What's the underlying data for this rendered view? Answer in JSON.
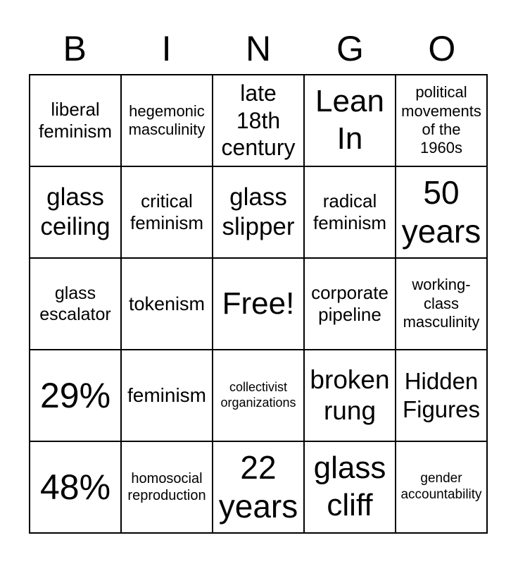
{
  "header": {
    "letters": [
      "B",
      "I",
      "N",
      "G",
      "O"
    ]
  },
  "card": {
    "rows": 5,
    "cols": 5,
    "free_space_text": "Free!",
    "cells": [
      {
        "text": "liberal feminism"
      },
      {
        "text": "hegemonic masculinity"
      },
      {
        "text": "late 18th century"
      },
      {
        "text": "Lean In"
      },
      {
        "text": "political movements of the 1960s"
      },
      {
        "text": "glass ceiling"
      },
      {
        "text": "critical feminism"
      },
      {
        "text": "glass slipper"
      },
      {
        "text": "radical feminism"
      },
      {
        "text": "50 years"
      },
      {
        "text": "glass escalator"
      },
      {
        "text": "tokenism"
      },
      {
        "text": "Free!"
      },
      {
        "text": "corporate pipeline"
      },
      {
        "text": "working-class masculinity"
      },
      {
        "text": "29%"
      },
      {
        "text": "feminism"
      },
      {
        "text": "collectivist organizations"
      },
      {
        "text": "broken rung"
      },
      {
        "text": "Hidden Figures"
      },
      {
        "text": "48%"
      },
      {
        "text": "homosocial reproduction"
      },
      {
        "text": "22 years"
      },
      {
        "text": "glass cliff"
      },
      {
        "text": "gender accountability"
      }
    ]
  },
  "colors": {
    "background": "#ffffff",
    "text": "#000000",
    "grid_lines": "#000000"
  }
}
